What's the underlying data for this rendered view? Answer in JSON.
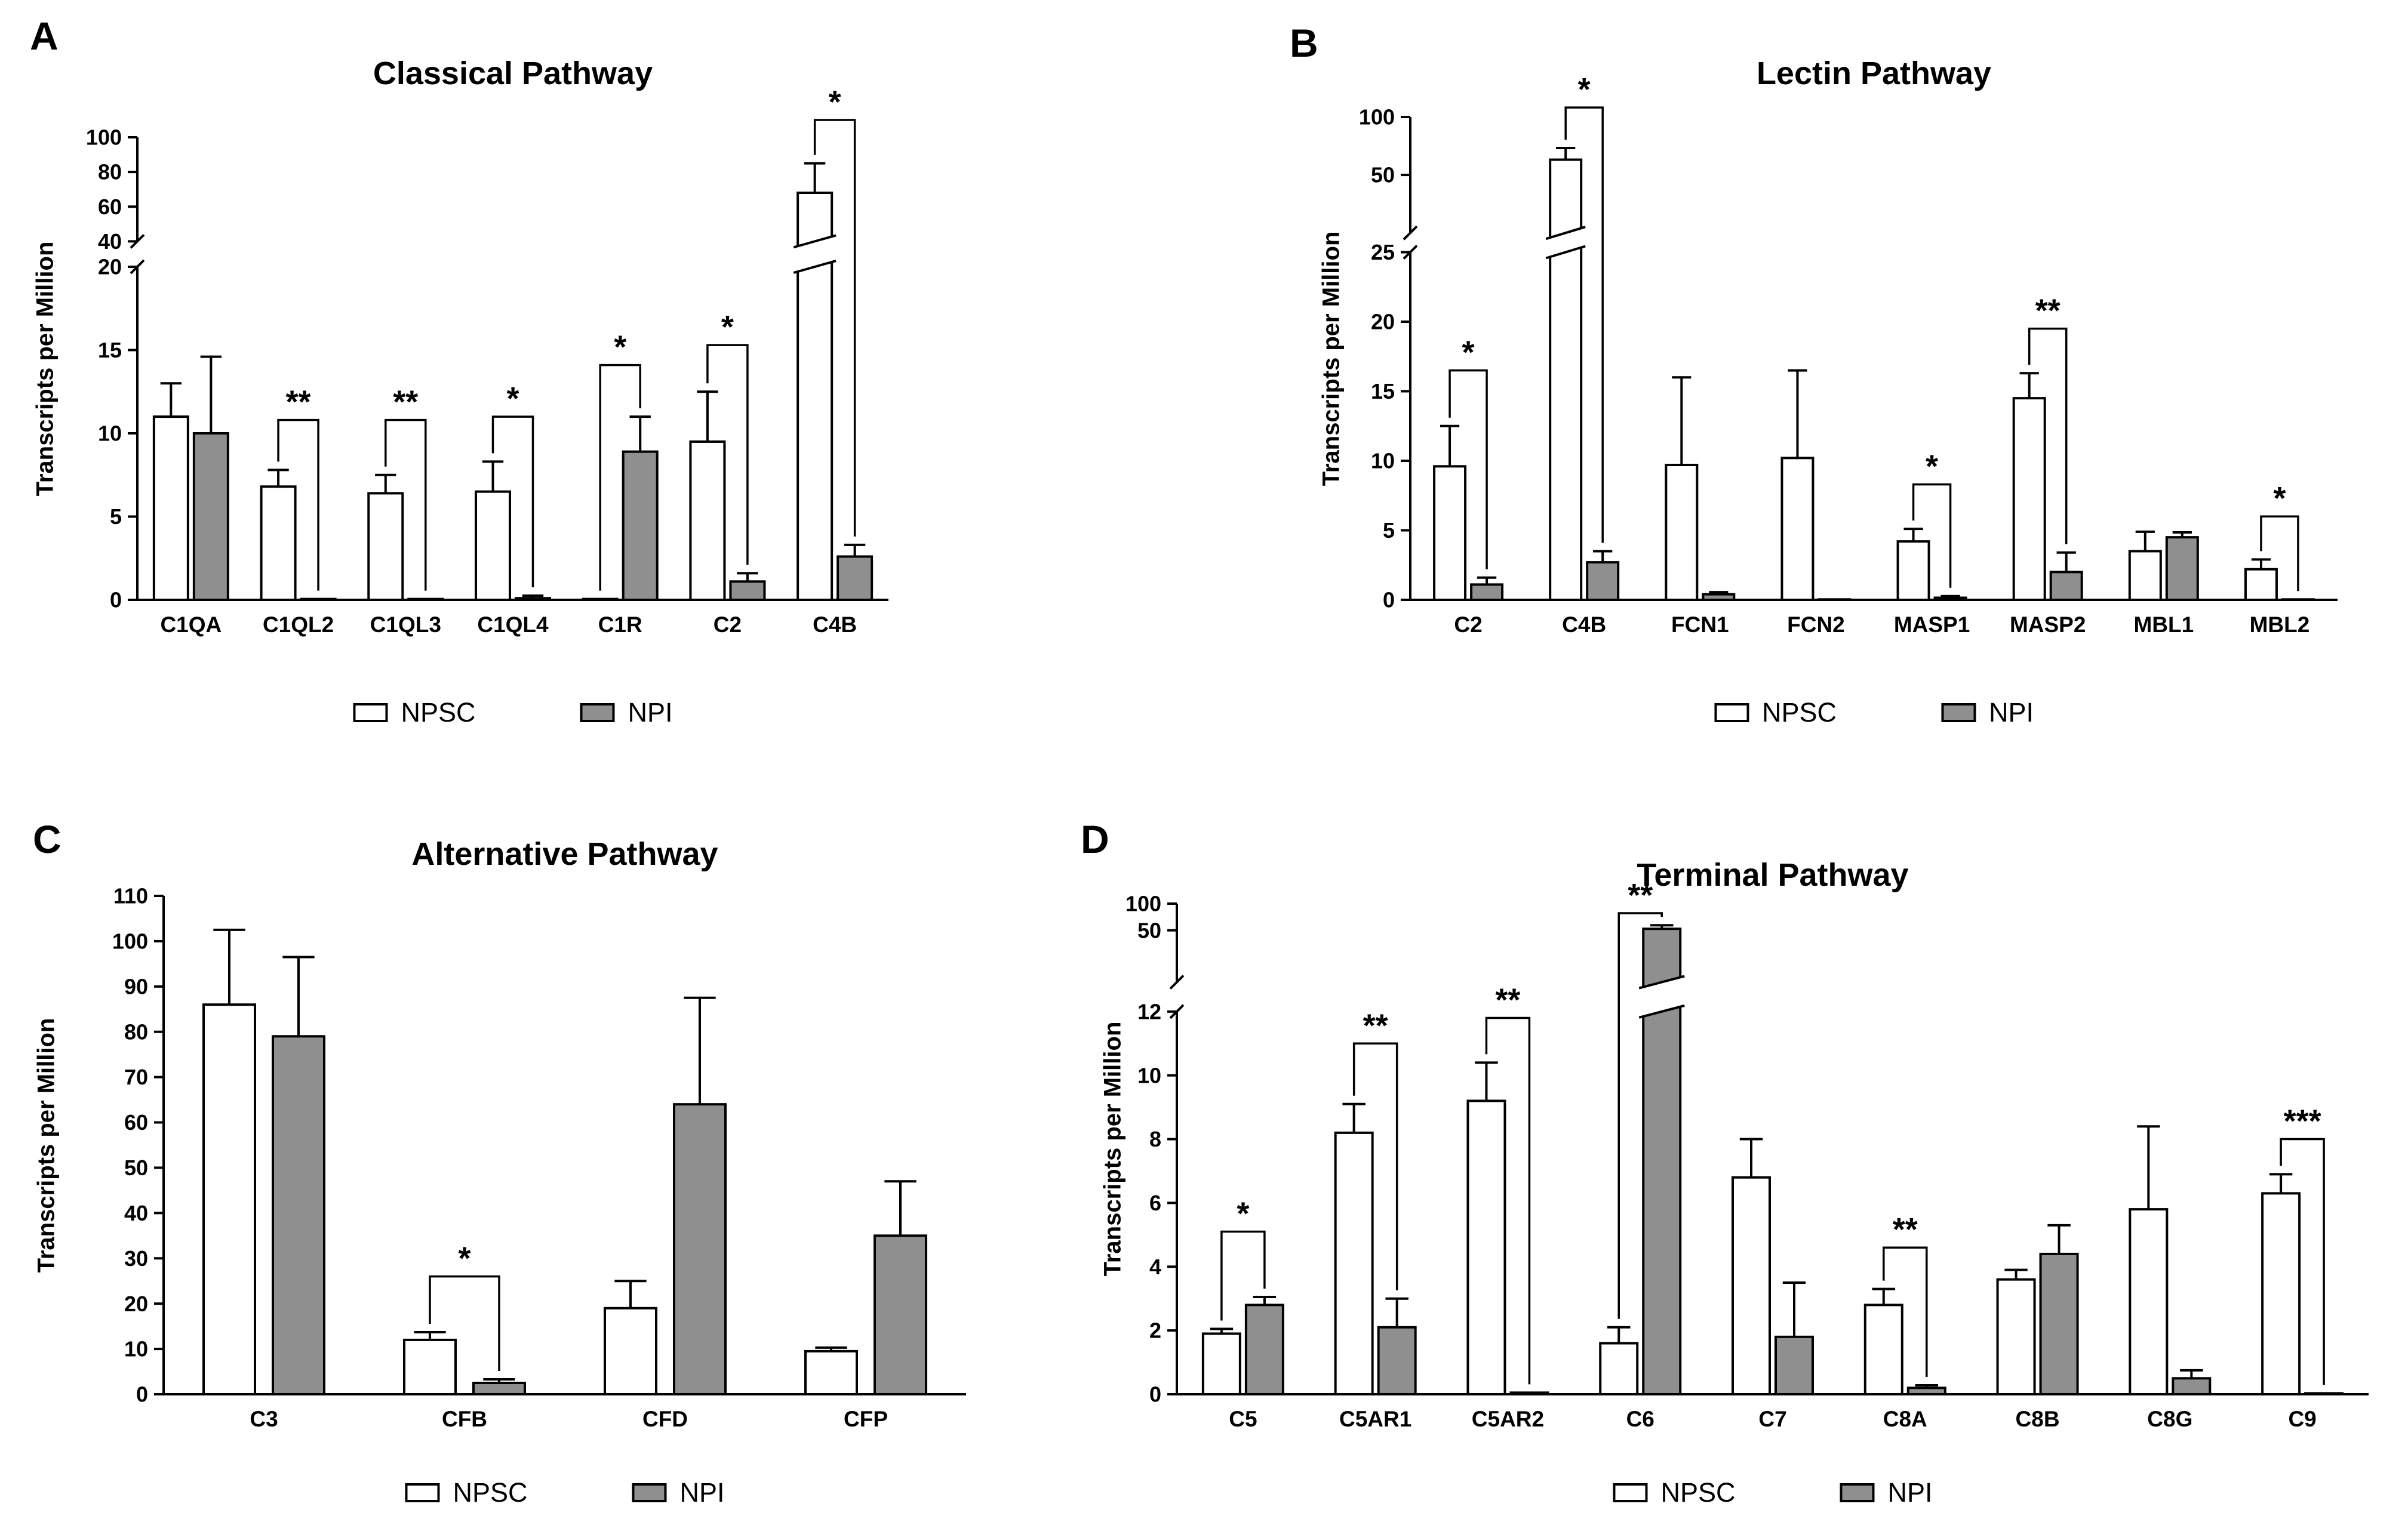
{
  "legend": {
    "npsc": "NPSC",
    "npi": "NPI"
  },
  "colors": {
    "npsc": "#ffffff",
    "npi": "#8f8f8f",
    "stroke": "#000000"
  },
  "chart_data": [
    {
      "panel": "A",
      "type": "bar",
      "title": "Classical Pathway",
      "ylabel": "Transcripts per Million",
      "categories": [
        "C1QA",
        "C1QL2",
        "C1QL3",
        "C1QL4",
        "C1R",
        "C2",
        "C4B"
      ],
      "series": [
        {
          "name": "NPSC",
          "values": [
            11,
            6.8,
            6.4,
            6.5,
            0.05,
            9.5,
            68
          ],
          "errors": [
            2,
            1,
            1.1,
            1.8,
            0,
            3,
            17
          ]
        },
        {
          "name": "NPI",
          "values": [
            10,
            0.05,
            0.05,
            0.1,
            8.9,
            1.1,
            2.6
          ],
          "errors": [
            4.6,
            0,
            0,
            0.15,
            2.1,
            0.5,
            0.7
          ]
        }
      ],
      "significance": [
        {
          "category": "C1QL2",
          "label": "**",
          "top": 10.8
        },
        {
          "category": "C1QL3",
          "label": "**",
          "top": 10.8
        },
        {
          "category": "C1QL4",
          "label": "*",
          "top": 11
        },
        {
          "category": "C1R",
          "label": "*",
          "top": 14.1
        },
        {
          "category": "C2",
          "label": "*",
          "top": 15.3
        },
        {
          "category": "C4B",
          "label": "*",
          "top": 110
        }
      ],
      "axis": {
        "lower": {
          "min": 0,
          "max": 20,
          "ticks": [
            0,
            5,
            10,
            15,
            20
          ]
        },
        "upper": {
          "min": 40,
          "max": 100,
          "ticks": [
            40,
            60,
            80,
            100
          ],
          "scale": "linear"
        },
        "fractions": {
          "lower": 0.72,
          "gap": 0.055
        }
      },
      "legend_position": "bottom",
      "grid": false
    },
    {
      "panel": "B",
      "type": "bar",
      "title": "Lectin Pathway",
      "ylabel": "Transcripts per Million",
      "categories": [
        "C2",
        "C4B",
        "FCN1",
        "FCN2",
        "MASP1",
        "MASP2",
        "MBL1",
        "MBL2"
      ],
      "series": [
        {
          "name": "NPSC",
          "values": [
            9.6,
            60,
            9.7,
            10.2,
            4.2,
            14.5,
            3.5,
            2.2
          ],
          "errors": [
            2.9,
            9,
            6.3,
            6.3,
            0.9,
            1.8,
            1.4,
            0.7
          ]
        },
        {
          "name": "NPI",
          "values": [
            1.1,
            2.7,
            0.4,
            0.03,
            0.15,
            2.0,
            4.5,
            0.03
          ],
          "errors": [
            0.5,
            0.8,
            0.15,
            0,
            0.12,
            1.4,
            0.35,
            0
          ]
        }
      ],
      "significance": [
        {
          "category": "C2",
          "label": "*",
          "top": 16.5
        },
        {
          "category": "C4B",
          "label": "*",
          "top": 112
        },
        {
          "category": "MASP1",
          "label": "*",
          "top": 8.3
        },
        {
          "category": "MASP2",
          "label": "**",
          "top": 19.5
        },
        {
          "category": "MBL2",
          "label": "*",
          "top": 6
        }
      ],
      "axis": {
        "lower": {
          "min": 0,
          "max": 25,
          "ticks": [
            0,
            5,
            10,
            15,
            20,
            25
          ]
        },
        "upper": {
          "min": 25,
          "max": 100,
          "ticks": [
            50,
            100
          ],
          "scale": "log"
        },
        "fractions": {
          "lower": 0.72,
          "gap": 0.04
        }
      },
      "legend_position": "bottom",
      "grid": false
    },
    {
      "panel": "C",
      "type": "bar",
      "title": "Alternative Pathway",
      "ylabel": "Transcripts per Million",
      "categories": [
        "C3",
        "CFB",
        "CFD",
        "CFP"
      ],
      "series": [
        {
          "name": "NPSC",
          "values": [
            86,
            12,
            19,
            9.5
          ],
          "errors": [
            16.5,
            1.7,
            6,
            0.8
          ]
        },
        {
          "name": "NPI",
          "values": [
            79,
            2.5,
            64,
            35
          ],
          "errors": [
            17.5,
            0.8,
            23.5,
            12
          ]
        }
      ],
      "significance": [
        {
          "category": "CFB",
          "label": "*",
          "top": 26
        }
      ],
      "axis": {
        "lower": {
          "min": 0,
          "max": 110,
          "ticks": [
            0,
            10,
            20,
            30,
            40,
            50,
            60,
            70,
            80,
            90,
            100,
            110
          ]
        },
        "upper": null,
        "fractions": {
          "lower": 1,
          "gap": 0
        }
      },
      "legend_position": "bottom",
      "grid": false
    },
    {
      "panel": "D",
      "type": "bar",
      "title": "Terminal Pathway",
      "ylabel": "Transcripts per Million",
      "categories": [
        "C5",
        "C5AR1",
        "C5AR2",
        "C6",
        "C7",
        "C8A",
        "C8B",
        "C8G",
        "C9"
      ],
      "series": [
        {
          "name": "NPSC",
          "values": [
            1.9,
            8.2,
            9.2,
            1.6,
            6.8,
            2.8,
            3.6,
            5.8,
            6.3
          ],
          "errors": [
            0.15,
            0.9,
            1.2,
            0.5,
            1.2,
            0.5,
            0.3,
            2.6,
            0.6
          ]
        },
        {
          "name": "NPI",
          "values": [
            2.8,
            2.1,
            0.05,
            52,
            1.8,
            0.2,
            4.4,
            0.5,
            0.03
          ],
          "errors": [
            0.25,
            0.9,
            0,
            5,
            1.7,
            0.08,
            0.9,
            0.25,
            0
          ]
        }
      ],
      "significance": [
        {
          "category": "C5",
          "label": "*",
          "top": 5.1
        },
        {
          "category": "C5AR1",
          "label": "**",
          "top": 11
        },
        {
          "category": "C5AR2",
          "label": "**",
          "top": 11.8
        },
        {
          "category": "C6",
          "label": "**",
          "top": 78
        },
        {
          "category": "C8A",
          "label": "**",
          "top": 4.6
        },
        {
          "category": "C9",
          "label": "***",
          "top": 8.0
        }
      ],
      "axis": {
        "lower": {
          "min": 0,
          "max": 12,
          "ticks": [
            0,
            2,
            4,
            6,
            8,
            10,
            12
          ]
        },
        "upper": {
          "min": 13,
          "max": 100,
          "ticks": [
            50,
            100
          ],
          "scale": "log"
        },
        "fractions": {
          "lower": 0.78,
          "gap": 0.06
        }
      },
      "legend_position": "bottom",
      "grid": false
    }
  ]
}
